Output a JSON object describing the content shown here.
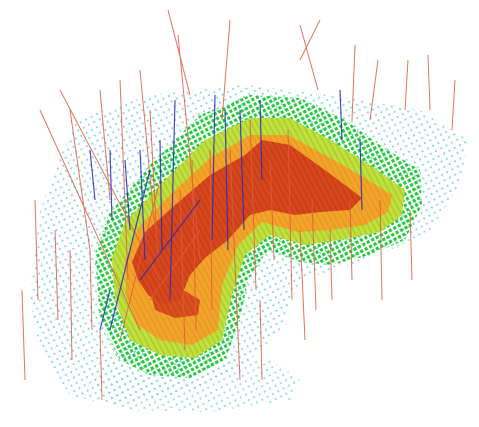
{
  "viewport": {
    "background": "#ffffff"
  },
  "legend_colors": {
    "sparse_outer": "#7fd3e8",
    "low_grade": "#22cc33",
    "mid_grade": "#c8df3a",
    "high_grade": "#f2a52b",
    "peak_grade": "#d8461c",
    "drillhole_red": "#e05a40",
    "drillhole_blue": "#2a2ab8"
  }
}
